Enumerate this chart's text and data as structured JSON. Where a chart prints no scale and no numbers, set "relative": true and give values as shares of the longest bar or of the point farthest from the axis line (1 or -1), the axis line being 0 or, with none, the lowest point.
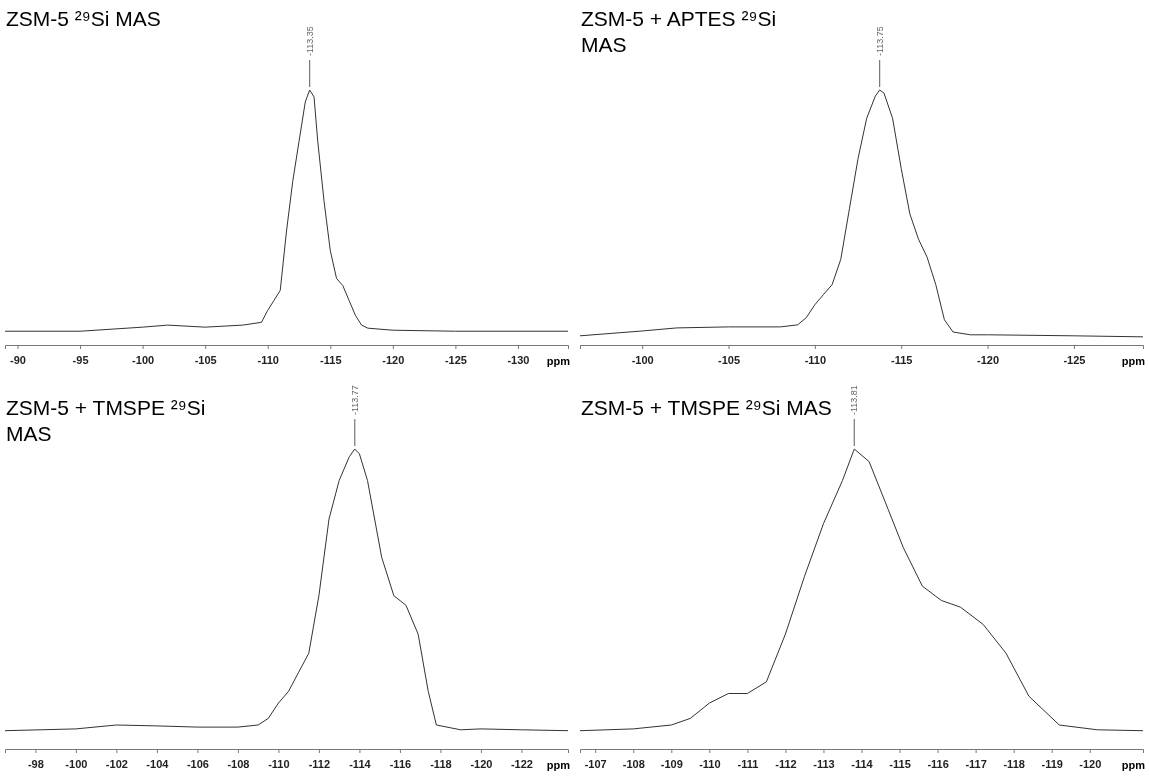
{
  "chart_data": [
    {
      "type": "line",
      "title": "ZSM-5 ²⁹Si MAS",
      "xlabel": "ppm",
      "relative": true,
      "xlim": [
        -89,
        -134
      ],
      "xticks": [
        -90,
        -95,
        -100,
        -105,
        -110,
        -115,
        -120,
        -125,
        -130
      ],
      "x": [
        -89,
        -95,
        -100,
        -102,
        -105,
        -108,
        -109.5,
        -110,
        -110.5,
        -111,
        -111.5,
        -112,
        -112.5,
        -113,
        -113.35,
        -113.7,
        -114,
        -114.5,
        -115,
        -115.5,
        -116,
        -116.5,
        -117,
        -117.5,
        -118,
        -120,
        -125,
        -130,
        -134
      ],
      "series": [
        {
          "color": "#333333",
          "values": [
            0.054,
            0.054,
            0.07,
            0.078,
            0.07,
            0.078,
            0.089,
            0.136,
            0.175,
            0.214,
            0.447,
            0.642,
            0.798,
            0.953,
            1,
            0.973,
            0.798,
            0.564,
            0.37,
            0.261,
            0.233,
            0.175,
            0.117,
            0.078,
            0.066,
            0.058,
            0.054,
            0.054,
            0.054
          ]
        }
      ],
      "annotations": [
        {
          "text": "-113.35",
          "x": -113.35,
          "y": 1
        }
      ]
    },
    {
      "type": "line",
      "title": "ZSM-5 + APTES ²⁹Si MAS",
      "xlabel": "ppm",
      "relative": true,
      "xlim": [
        -96.4,
        -129
      ],
      "xticks": [
        -100,
        -105,
        -110,
        -115,
        -120,
        -125
      ],
      "x": [
        -96.4,
        -100,
        -102,
        -105,
        -108,
        -109,
        -109.5,
        -110,
        -110.5,
        -111,
        -111.5,
        -112,
        -112.5,
        -113,
        -113.5,
        -113.75,
        -114,
        -114.5,
        -115,
        -115.5,
        -116,
        -116.5,
        -117,
        -117.5,
        -118,
        -119,
        -120,
        -125,
        -129
      ],
      "series": [
        {
          "color": "#333333",
          "values": [
            0.036,
            0.055,
            0.067,
            0.071,
            0.071,
            0.079,
            0.107,
            0.158,
            0.198,
            0.237,
            0.336,
            0.534,
            0.731,
            0.889,
            0.976,
            1,
            0.988,
            0.889,
            0.692,
            0.514,
            0.415,
            0.344,
            0.237,
            0.099,
            0.051,
            0.04,
            0.04,
            0.036,
            0.032
          ]
        }
      ],
      "annotations": [
        {
          "text": "-113.75",
          "x": -113.75,
          "y": 1
        }
      ]
    },
    {
      "type": "line",
      "title": "ZSM-5 + TMSPE ²⁹Si MAS",
      "xlabel": "ppm",
      "relative": true,
      "xlim": [
        -96.5,
        -124.3
      ],
      "xticks": [
        -98,
        -100,
        -102,
        -104,
        -106,
        -108,
        -110,
        -112,
        -114,
        -116,
        -118,
        -120,
        -122
      ],
      "x": [
        -96.5,
        -100,
        -102,
        -104,
        -106,
        -108,
        -109,
        -109.5,
        -110,
        -110.5,
        -111,
        -111.5,
        -112,
        -112.5,
        -113,
        -113.5,
        -113.77,
        -114,
        -114.4,
        -115.1,
        -115.7,
        -116.3,
        -116.9,
        -117.4,
        -117.8,
        -119,
        -120,
        -122,
        -124.3
      ],
      "series": [
        {
          "color": "#333333",
          "values": [
            0.061,
            0.067,
            0.08,
            0.077,
            0.073,
            0.073,
            0.08,
            0.102,
            0.153,
            0.192,
            0.256,
            0.319,
            0.511,
            0.767,
            0.895,
            0.974,
            1,
            0.984,
            0.895,
            0.639,
            0.511,
            0.479,
            0.383,
            0.192,
            0.08,
            0.064,
            0.067,
            0.064,
            0.061
          ]
        }
      ],
      "annotations": [
        {
          "text": "-113.77",
          "x": -113.77,
          "y": 1
        }
      ]
    },
    {
      "type": "line",
      "title": "ZSM-5 + TMSPE ²⁹Si MAS",
      "xlabel": "ppm",
      "relative": true,
      "xlim": [
        -106.6,
        -121.4
      ],
      "xticks": [
        -107,
        -108,
        -109,
        -110,
        -111,
        -112,
        -113,
        -114,
        -115,
        -116,
        -117,
        -118,
        -119,
        -120
      ],
      "x": [
        -106.6,
        -108,
        -109,
        -109.5,
        -110,
        -110.5,
        -111,
        -111.5,
        -112,
        -112.5,
        -113,
        -113.5,
        -113.81,
        -114.2,
        -114.7,
        -115.1,
        -115.6,
        -116.1,
        -116.6,
        -117.2,
        -117.8,
        -118.4,
        -119.2,
        -120.2,
        -121.4
      ],
      "series": [
        {
          "color": "#333333",
          "values": [
            0.061,
            0.067,
            0.08,
            0.102,
            0.153,
            0.185,
            0.185,
            0.224,
            0.383,
            0.575,
            0.751,
            0.895,
            1,
            0.958,
            0.799,
            0.671,
            0.543,
            0.495,
            0.473,
            0.415,
            0.319,
            0.176,
            0.08,
            0.064,
            0.061
          ]
        }
      ],
      "annotations": [
        {
          "text": "-113.81",
          "x": -113.81,
          "y": 1
        }
      ]
    }
  ]
}
